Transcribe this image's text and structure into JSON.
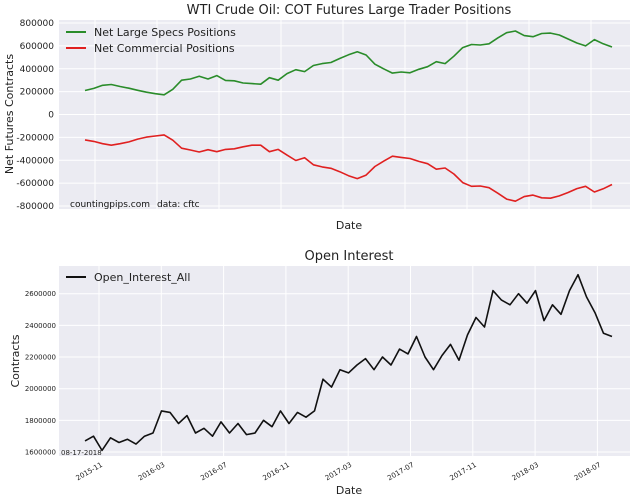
{
  "chart_data": [
    {
      "type": "line",
      "title": "WTI Crude Oil: COT Futures Large Trader Positions",
      "xlabel": "Date",
      "ylabel": "Net Futures Contracts",
      "ylim": [
        -800000,
        800000
      ],
      "yticks": [
        "800000",
        "600000",
        "400000",
        "200000",
        "0",
        "-200000",
        "-400000",
        "-600000",
        "-800000"
      ],
      "grid": true,
      "legend_position": "top-left",
      "annotations": [
        "countingpips.com",
        "data: cftc"
      ],
      "series": [
        {
          "name": "Net Large Specs Positions",
          "color": "#2a8c2a",
          "values": [
            210000,
            228000,
            255000,
            262000,
            245000,
            230000,
            212000,
            195000,
            182000,
            172000,
            220000,
            300000,
            310000,
            335000,
            310000,
            340000,
            298000,
            295000,
            275000,
            270000,
            265000,
            322000,
            300000,
            358000,
            392000,
            375000,
            428000,
            445000,
            455000,
            490000,
            522000,
            548000,
            520000,
            440000,
            400000,
            362000,
            372000,
            365000,
            395000,
            418000,
            462000,
            445000,
            510000,
            585000,
            612000,
            608000,
            618000,
            670000,
            715000,
            730000,
            690000,
            680000,
            708000,
            712000,
            695000,
            660000,
            625000,
            600000,
            655000,
            618000,
            590000
          ]
        },
        {
          "name": "Net Commercial Positions",
          "color": "#e02020",
          "values": [
            -222000,
            -235000,
            -255000,
            -268000,
            -255000,
            -240000,
            -215000,
            -198000,
            -188000,
            -178000,
            -225000,
            -295000,
            -310000,
            -328000,
            -308000,
            -325000,
            -305000,
            -300000,
            -282000,
            -268000,
            -268000,
            -325000,
            -305000,
            -355000,
            -402000,
            -378000,
            -440000,
            -458000,
            -470000,
            -500000,
            -535000,
            -560000,
            -530000,
            -455000,
            -408000,
            -365000,
            -375000,
            -385000,
            -410000,
            -430000,
            -478000,
            -468000,
            -520000,
            -595000,
            -628000,
            -625000,
            -640000,
            -688000,
            -740000,
            -758000,
            -718000,
            -705000,
            -728000,
            -732000,
            -712000,
            -682000,
            -648000,
            -628000,
            -678000,
            -650000,
            -612000
          ]
        }
      ]
    },
    {
      "type": "line",
      "title": "Open Interest",
      "xlabel": "Date",
      "ylabel": "Contracts",
      "ylim": [
        1600000,
        2750000
      ],
      "yticks": [
        "2600000",
        "2400000",
        "2200000",
        "2000000",
        "1800000",
        "1600000"
      ],
      "xticks": [
        "2015-11",
        "2016-03",
        "2016-07",
        "2016-11",
        "2017-03",
        "2017-07",
        "2017-11",
        "2018-03",
        "2018-07"
      ],
      "x_start_label": "08-17-2018",
      "grid": true,
      "legend_position": "top-left",
      "series": [
        {
          "name": "Open_Interest_All",
          "color": "#111111",
          "values": [
            1670000,
            1700000,
            1610000,
            1690000,
            1660000,
            1680000,
            1650000,
            1700000,
            1720000,
            1860000,
            1850000,
            1780000,
            1830000,
            1720000,
            1750000,
            1700000,
            1790000,
            1720000,
            1780000,
            1710000,
            1720000,
            1800000,
            1760000,
            1860000,
            1780000,
            1850000,
            1820000,
            1860000,
            2060000,
            2010000,
            2120000,
            2100000,
            2150000,
            2190000,
            2120000,
            2200000,
            2150000,
            2250000,
            2220000,
            2330000,
            2200000,
            2120000,
            2210000,
            2280000,
            2180000,
            2340000,
            2450000,
            2390000,
            2620000,
            2560000,
            2530000,
            2600000,
            2540000,
            2620000,
            2430000,
            2530000,
            2470000,
            2620000,
            2720000,
            2580000,
            2480000,
            2350000,
            2330000
          ]
        }
      ]
    }
  ]
}
